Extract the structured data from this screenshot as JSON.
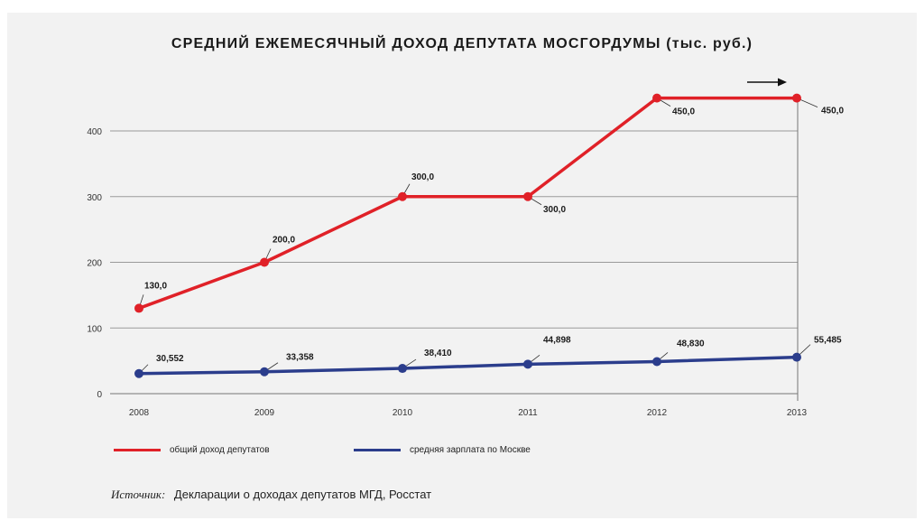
{
  "chart_data": {
    "type": "line",
    "title": "СРЕДНИЙ ЕЖЕМЕСЯЧНЫЙ ДОХОД ДЕПУТАТА МОСГОРДУМЫ (тыс. руб.)",
    "xlabel": "",
    "ylabel": "",
    "categories": [
      "2008",
      "2009",
      "2010",
      "2011",
      "2012",
      "2013"
    ],
    "ylim": [
      0,
      450
    ],
    "yticks": [
      "0",
      "100",
      "200",
      "300",
      "400"
    ],
    "grid": true,
    "legend_position": "bottom",
    "series": [
      {
        "name": "общий доход депутатов",
        "color": "#e02128",
        "values": [
          130,
          200,
          300,
          300,
          450,
          450
        ],
        "labels": [
          "130,0",
          "200,0",
          "300,0",
          "300,0",
          "450,0",
          "450,0"
        ]
      },
      {
        "name": "средняя зарплата по Москве",
        "color": "#2b3d8c",
        "values": [
          30.552,
          33.358,
          38.41,
          44.898,
          48.83,
          55.485
        ],
        "labels": [
          "30,552",
          "33,358",
          "38,410",
          "44,898",
          "48,830",
          "55,485"
        ]
      }
    ]
  },
  "source": {
    "key": "Источник:",
    "text": "Декларации о доходах депутатов МГД, Росстат"
  }
}
